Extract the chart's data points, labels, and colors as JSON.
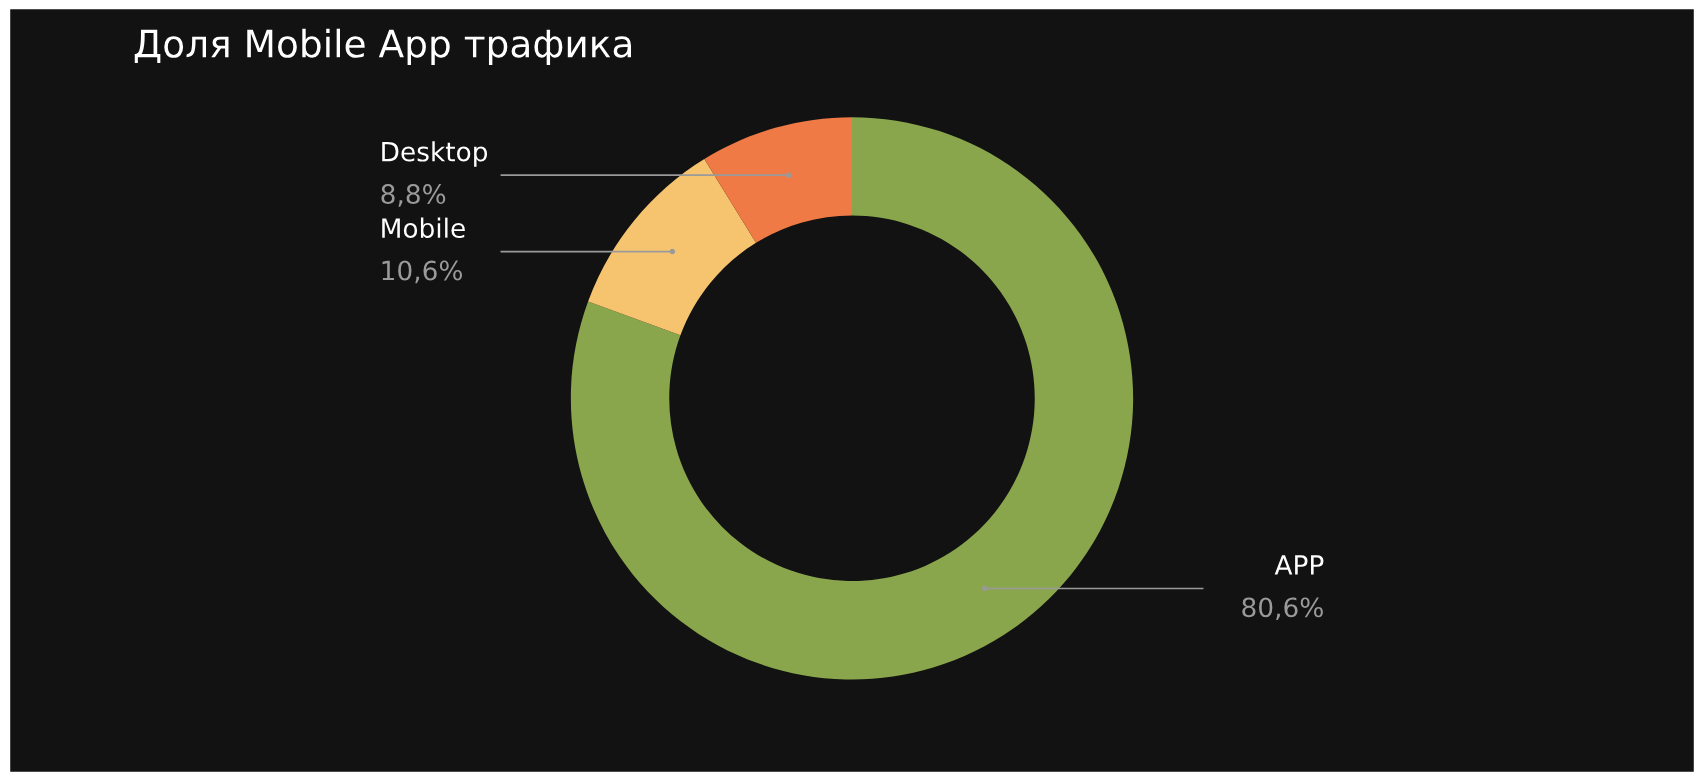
{
  "chart_data": {
    "type": "donut",
    "title": "Доля Mobile App трафика",
    "categories": [
      "APP",
      "Mobile",
      "Desktop"
    ],
    "values": [
      80.6,
      10.6,
      8.8
    ],
    "colors": [
      "#8aa64c",
      "#f6c46e",
      "#ef7a45"
    ],
    "value_labels": [
      "80,6%",
      "10,6%",
      "8,8%"
    ],
    "legend": false
  }
}
